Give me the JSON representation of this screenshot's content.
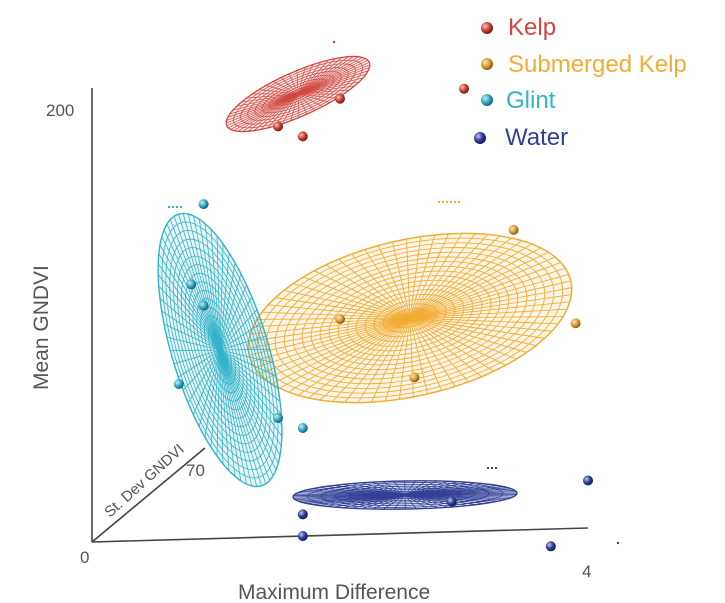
{
  "chart_data": {
    "type": "scatter",
    "subtype": "3d-ellipsoid-scatter",
    "xlabel": "Maximum Difference",
    "ylabel": "Mean GNDVI",
    "zlabel": "St. Dev GNDVI",
    "x_ticks": [
      "0",
      "4"
    ],
    "y_ticks": [
      "200"
    ],
    "z_ticks": [
      "70"
    ],
    "xlim": [
      0,
      4
    ],
    "ylim": [
      0,
      200
    ],
    "zlim": [
      0,
      70
    ],
    "grid": false,
    "legend_position": "top-right",
    "series": [
      {
        "name": "Kelp",
        "color": "#d0493f",
        "points": [
          [
            2.0,
            202
          ],
          [
            3.0,
            205
          ],
          [
            1.5,
            190
          ],
          [
            1.7,
            185
          ]
        ]
      },
      {
        "name": "Submerged Kelp",
        "color": "#f2ad35",
        "points": [
          [
            3.4,
            139
          ],
          [
            3.9,
            95
          ],
          [
            2.0,
            100
          ],
          [
            2.6,
            72
          ]
        ]
      },
      {
        "name": "Glint",
        "color": "#33b2cb",
        "points": [
          [
            0.9,
            155
          ],
          [
            0.8,
            118
          ],
          [
            0.9,
            108
          ],
          [
            0.7,
            72
          ],
          [
            1.5,
            55
          ],
          [
            1.7,
            50
          ]
        ]
      },
      {
        "name": "Water",
        "color": "#334096",
        "points": [
          [
            1.7,
            10
          ],
          [
            1.7,
            0
          ],
          [
            2.9,
            14
          ],
          [
            3.7,
            -8
          ],
          [
            4.0,
            22
          ]
        ]
      }
    ]
  }
}
